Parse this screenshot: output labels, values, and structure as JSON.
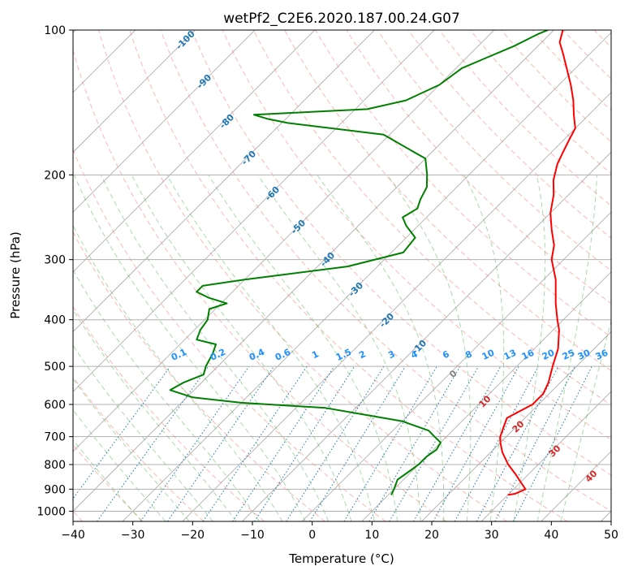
{
  "chart_data": {
    "type": "line",
    "subtype": "skew-T log-P diagram",
    "title": "wetPf2_C2E6.2020.187.00.24.G07",
    "xlabel": "Temperature (°C)",
    "ylabel": "Pressure (hPa)",
    "xlim": [
      -40,
      50
    ],
    "ylim": [
      1050,
      100
    ],
    "y_scale": "log",
    "grid": true,
    "x_ticks": [
      -40,
      -30,
      -20,
      -10,
      0,
      10,
      20,
      30,
      40,
      50
    ],
    "x_tick_labels": [
      "−40",
      "−30",
      "−20",
      "−10",
      "0",
      "10",
      "20",
      "30",
      "40",
      "50"
    ],
    "y_ticks": [
      100,
      200,
      300,
      400,
      500,
      600,
      700,
      800,
      900,
      1000
    ],
    "y_tick_labels": [
      "100",
      "200",
      "300",
      "400",
      "500",
      "600",
      "700",
      "800",
      "900",
      "1000"
    ],
    "series": [
      {
        "color": "#ff0000",
        "points": [
          [
            30,
            925
          ],
          [
            31,
            920
          ],
          [
            32,
            900
          ],
          [
            30,
            870
          ],
          [
            28,
            840
          ],
          [
            25,
            800
          ],
          [
            22,
            755
          ],
          [
            20,
            720
          ],
          [
            19,
            700
          ],
          [
            18,
            670
          ],
          [
            17,
            640
          ],
          [
            18,
            620
          ],
          [
            19,
            600
          ],
          [
            19,
            570
          ],
          [
            18,
            540
          ],
          [
            16,
            500
          ],
          [
            14,
            460
          ],
          [
            11,
            420
          ],
          [
            9,
            400
          ],
          [
            6,
            370
          ],
          [
            2,
            330
          ],
          [
            -2,
            300
          ],
          [
            -4,
            280
          ],
          [
            -7,
            260
          ],
          [
            -10,
            240
          ],
          [
            -12.5,
            220
          ],
          [
            -15,
            205
          ],
          [
            -17,
            190
          ],
          [
            -18,
            180
          ],
          [
            -19,
            170
          ],
          [
            -20,
            160
          ],
          [
            -22.5,
            150
          ],
          [
            -25,
            140
          ],
          [
            -28,
            130
          ],
          [
            -31.5,
            120
          ],
          [
            -34.5,
            112
          ],
          [
            -37,
            106
          ],
          [
            -38.5,
            100
          ]
        ]
      },
      {
        "color": "#008000",
        "points": [
          [
            10.5,
            925
          ],
          [
            10,
            900
          ],
          [
            9,
            860
          ],
          [
            9.5,
            830
          ],
          [
            10,
            800
          ],
          [
            10,
            770
          ],
          [
            10.5,
            745
          ],
          [
            10,
            720
          ],
          [
            8,
            700
          ],
          [
            6,
            680
          ],
          [
            0,
            650
          ],
          [
            -15,
            610
          ],
          [
            -30,
            595
          ],
          [
            -39,
            580
          ],
          [
            -44,
            560
          ],
          [
            -43,
            540
          ],
          [
            -41,
            520
          ],
          [
            -42,
            500
          ],
          [
            -43,
            470
          ],
          [
            -44,
            450
          ],
          [
            -48,
            440
          ],
          [
            -49,
            420
          ],
          [
            -49.5,
            400
          ],
          [
            -51,
            380
          ],
          [
            -49,
            370
          ],
          [
            -53,
            360
          ],
          [
            -56,
            350
          ],
          [
            -56,
            340
          ],
          [
            -50,
            330
          ],
          [
            -35,
            310
          ],
          [
            -28,
            290
          ],
          [
            -28.5,
            270
          ],
          [
            -32,
            255
          ],
          [
            -34,
            245
          ],
          [
            -33,
            235
          ],
          [
            -34,
            225
          ],
          [
            -35,
            212
          ],
          [
            -37,
            200
          ],
          [
            -40,
            185
          ],
          [
            -51,
            165
          ],
          [
            -69,
            156
          ],
          [
            -73,
            153
          ],
          [
            -76,
            150
          ],
          [
            -58,
            146
          ],
          [
            -53,
            140
          ],
          [
            -50,
            130
          ],
          [
            -49,
            120
          ],
          [
            -47,
            115
          ],
          [
            -44,
            108
          ],
          [
            -42,
            102
          ],
          [
            -41,
            100
          ]
        ]
      }
    ],
    "reference_lines": {
      "dry_adiabats_labels": [
        "-100",
        "-90",
        "-80",
        "-70",
        "-60",
        "-50",
        "-40",
        "-30",
        "-20",
        "-10",
        "0",
        "10",
        "20",
        "30",
        "40"
      ],
      "mixing_ratio_labels": [
        "0.1",
        "0.2",
        "0.4",
        "0.6",
        "1",
        "1.5",
        "2",
        "3",
        "4",
        "6",
        "8",
        "10",
        "13",
        "16",
        "20",
        "25",
        "30",
        "36"
      ],
      "mixing_ratio_values": [
        0.1,
        0.2,
        0.4,
        0.6,
        1,
        1.5,
        2,
        3,
        4,
        6,
        8,
        10,
        13,
        16,
        20,
        25,
        30,
        36
      ],
      "isotherm_spacing": 10,
      "colors": {
        "isotherm": "#b0b0b0",
        "dry_adiabat": "#fa8072",
        "moist_adiabat": "#2ca02c",
        "mixing_ratio": "#1f77b4",
        "cold_adiabat_label": "#1f77b4",
        "warm_adiabat_label": "#d62728",
        "zero_adiabat_label": "#808080",
        "mixing_label": "#1e90ff",
        "frame": "#000000"
      }
    }
  }
}
